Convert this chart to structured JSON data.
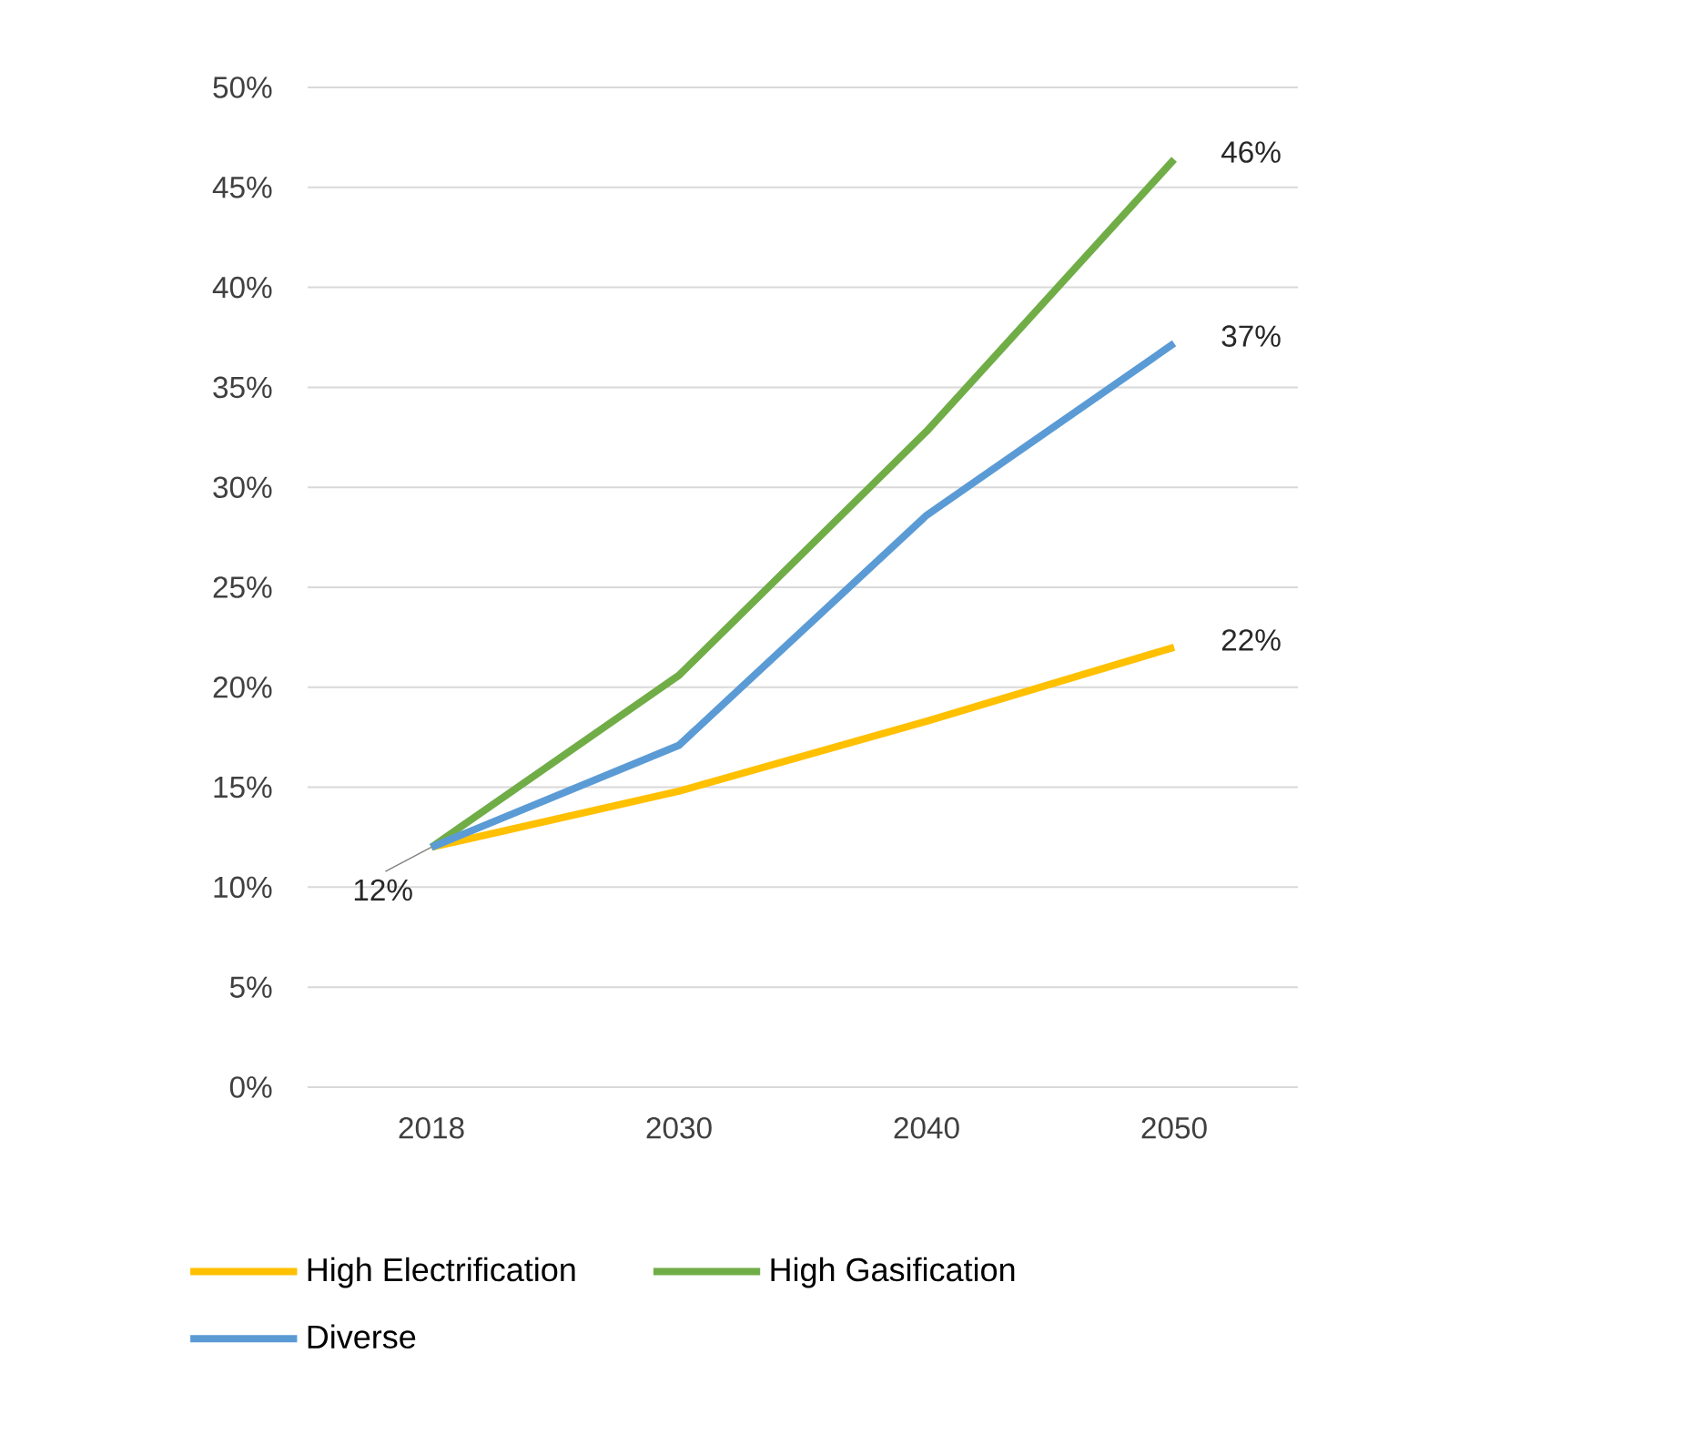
{
  "chart_data": {
    "type": "line",
    "categories": [
      "2018",
      "2030",
      "2040",
      "2050"
    ],
    "series": [
      {
        "name": "High Electrification",
        "color": "#ffc000",
        "values": [
          12,
          14.8,
          18.3,
          22
        ]
      },
      {
        "name": "High Gasification",
        "color": "#70ad47",
        "values": [
          12,
          20.6,
          32.8,
          46.4
        ]
      },
      {
        "name": "Diverse",
        "color": "#5b9bd5",
        "values": [
          12,
          17.1,
          28.6,
          37.2
        ]
      }
    ],
    "ylim": [
      0,
      50
    ],
    "yticks": [
      {
        "value": 0,
        "label": "0%"
      },
      {
        "value": 5,
        "label": "5%"
      },
      {
        "value": 10,
        "label": "10%"
      },
      {
        "value": 15,
        "label": "15%"
      },
      {
        "value": 20,
        "label": "20%"
      },
      {
        "value": 25,
        "label": "25%"
      },
      {
        "value": 30,
        "label": "30%"
      },
      {
        "value": 35,
        "label": "35%"
      },
      {
        "value": 40,
        "label": "40%"
      },
      {
        "value": 45,
        "label": "45%"
      },
      {
        "value": 50,
        "label": "50%"
      }
    ],
    "annotations": [
      {
        "text": "46%",
        "x": "2050",
        "y": 46.4
      },
      {
        "text": "37%",
        "x": "2050",
        "y": 37.2
      },
      {
        "text": "22%",
        "x": "2050",
        "y": 22
      },
      {
        "text": "12%",
        "x": "2018",
        "y": 12
      }
    ],
    "grid": "y",
    "legend": "bottom",
    "marker": "none",
    "line_style": "solid"
  }
}
